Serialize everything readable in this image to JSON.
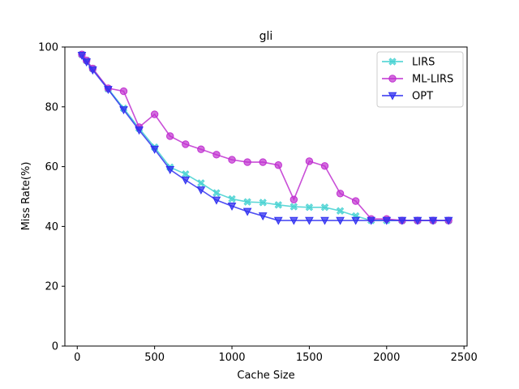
{
  "chart_data": {
    "type": "line",
    "title": "gli",
    "xlabel": "Cache Size",
    "ylabel": "Miss Rate(%)",
    "xlim": [
      -80,
      2520
    ],
    "ylim": [
      0,
      100
    ],
    "xticks": [
      0,
      500,
      1000,
      1500,
      2000,
      2500
    ],
    "yticks": [
      0,
      20,
      40,
      60,
      80,
      100
    ],
    "grid": false,
    "legend_position": "top-right",
    "x": [
      30,
      60,
      100,
      200,
      300,
      400,
      500,
      600,
      700,
      800,
      900,
      1000,
      1100,
      1200,
      1300,
      1400,
      1500,
      1600,
      1700,
      1800,
      1900,
      2000,
      2100,
      2200,
      2300,
      2400
    ],
    "series": [
      {
        "name": "LIRS",
        "color": "#40d0d0",
        "marker": "x",
        "values": [
          97.5,
          95.5,
          92.8,
          86.0,
          79.5,
          72.8,
          66.5,
          59.8,
          57.5,
          54.5,
          51.2,
          49.2,
          48.2,
          48.0,
          47.2,
          46.6,
          46.4,
          46.4,
          45.2,
          43.5,
          42.0,
          42.0,
          42.0,
          42.0,
          42.0,
          42.0
        ]
      },
      {
        "name": "ML-LIRS",
        "color": "#c030d0",
        "marker": "o",
        "values": [
          97.5,
          95.5,
          92.8,
          86.2,
          85.2,
          73.2,
          77.5,
          70.2,
          67.5,
          65.8,
          64.0,
          62.3,
          61.5,
          61.5,
          60.5,
          49.0,
          61.8,
          60.2,
          51.0,
          48.5,
          42.5,
          42.5,
          42.0,
          42.0,
          42.0,
          42.0
        ]
      },
      {
        "name": "OPT",
        "color": "#3030f0",
        "marker": "v",
        "values": [
          97.2,
          95.0,
          92.3,
          85.8,
          79.0,
          72.2,
          65.8,
          59.0,
          55.5,
          52.2,
          48.8,
          46.8,
          45.0,
          43.5,
          42.0,
          42.0,
          42.0,
          42.0,
          42.0,
          42.0,
          42.0,
          42.0,
          42.0,
          42.0,
          42.0,
          42.0
        ]
      }
    ]
  }
}
